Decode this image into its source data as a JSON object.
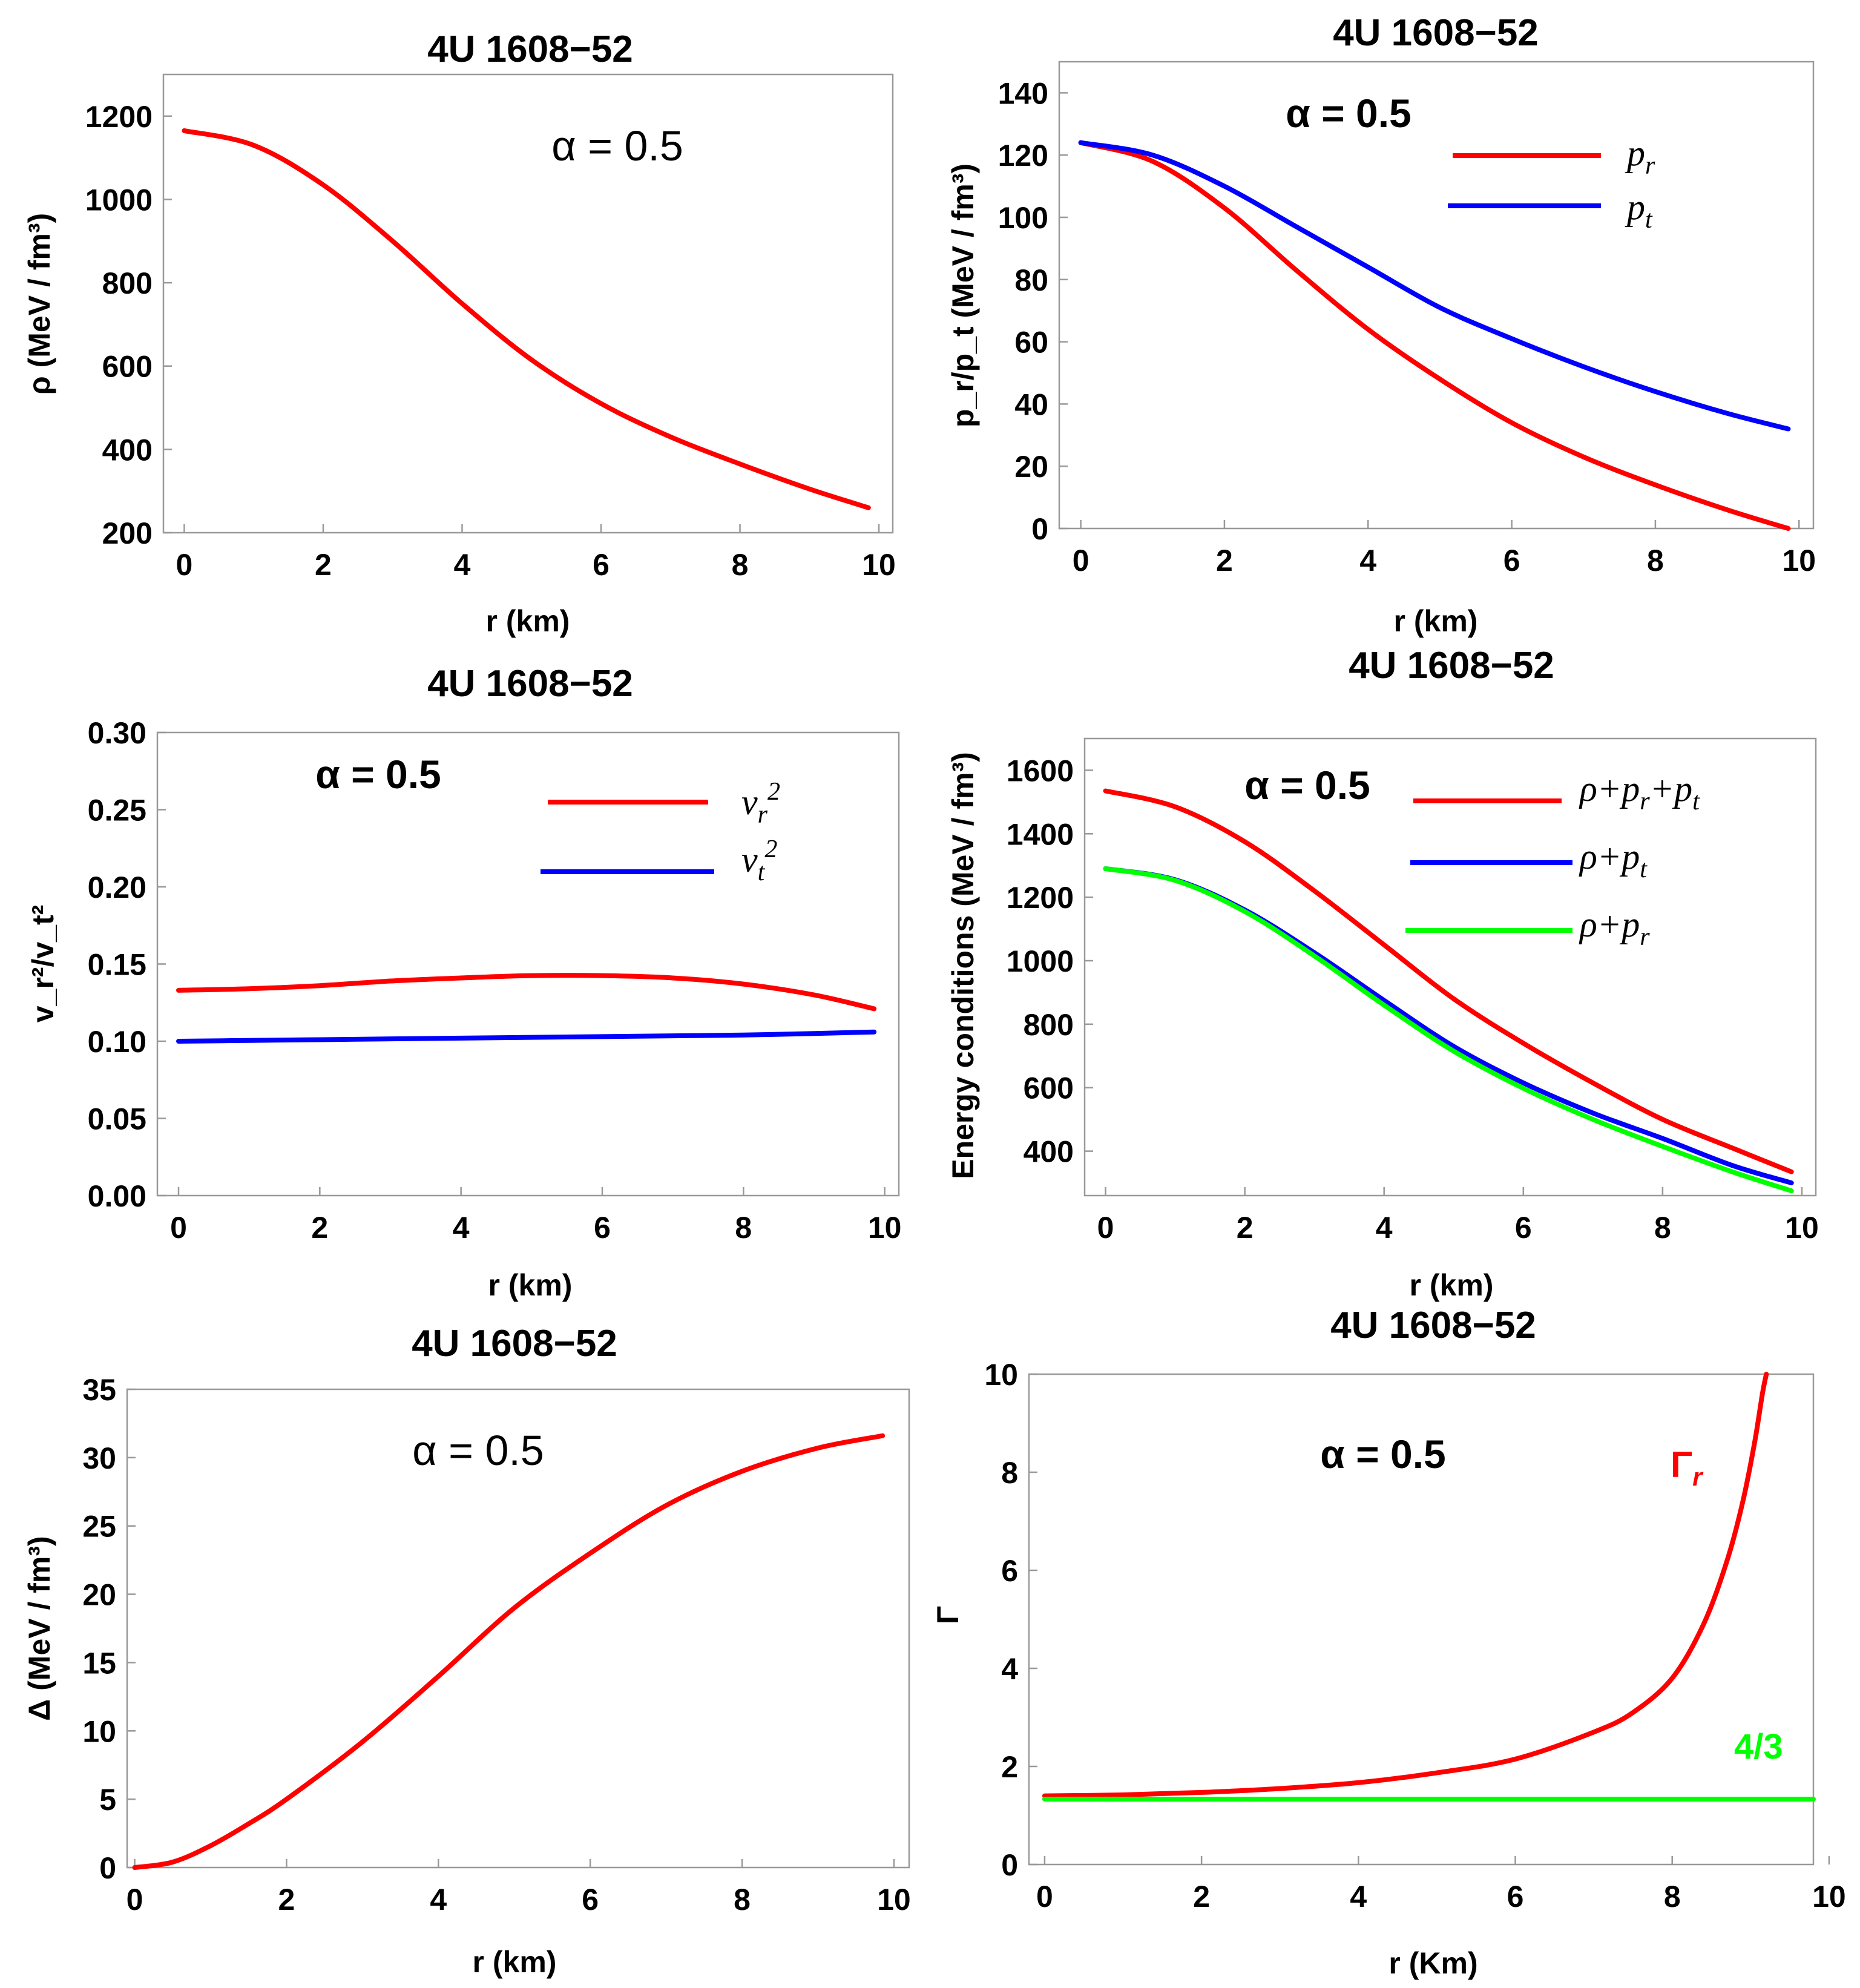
{
  "chart_data": [
    {
      "id": "density",
      "type": "line",
      "title": "4U 1608−52",
      "annotation": "α = 0.5",
      "xlabel": "r (km)",
      "ylabel": "ρ  (MeV / fm³)",
      "xlim": [
        -0.3,
        10.2
      ],
      "ylim": [
        200,
        1300
      ],
      "xticks": [
        0,
        2,
        4,
        6,
        8,
        10
      ],
      "yticks": [
        200,
        400,
        600,
        800,
        1000,
        1200
      ],
      "tick_decimals": 0,
      "x": [
        0,
        1,
        2,
        3,
        4,
        5,
        6,
        7,
        8,
        9,
        9.85
      ],
      "series": [
        {
          "name": "ρ",
          "color": "#ff0000",
          "values": [
            1165,
            1130,
            1035,
            900,
            750,
            615,
            510,
            430,
            365,
            305,
            260
          ]
        }
      ]
    },
    {
      "id": "pressure",
      "type": "line",
      "title": "4U 1608−52",
      "annotation": "α = 0.5",
      "xlabel": "r (km)",
      "ylabel": "p_r/p_t  (MeV / fm³)",
      "xlim": [
        -0.3,
        10.2
      ],
      "ylim": [
        0,
        150
      ],
      "xticks": [
        0,
        2,
        4,
        6,
        8,
        10
      ],
      "yticks": [
        0,
        20,
        40,
        60,
        80,
        100,
        120,
        140
      ],
      "tick_decimals": 0,
      "x": [
        0,
        1,
        2,
        3,
        4,
        5,
        6,
        7,
        8,
        9,
        9.85
      ],
      "series": [
        {
          "name": "p_r",
          "color": "#ff0000",
          "values": [
            124,
            118,
            103,
            83,
            64,
            48,
            34,
            23,
            14,
            6,
            0
          ]
        },
        {
          "name": "p_t",
          "color": "#0000ff",
          "values": [
            124,
            120,
            110,
            97,
            84,
            71,
            61,
            52,
            44,
            37,
            32
          ]
        }
      ],
      "legend": [
        {
          "label": "p",
          "sub": "r",
          "color": "#ff0000"
        },
        {
          "label": "p",
          "sub": "t",
          "color": "#0000ff"
        }
      ]
    },
    {
      "id": "sound-speed",
      "type": "line",
      "title": "4U 1608−52",
      "annotation": "α = 0.5",
      "xlabel": "r (km)",
      "ylabel": "v_r²/v_t²",
      "xlim": [
        -0.3,
        10.2
      ],
      "ylim": [
        0,
        0.3
      ],
      "xticks": [
        0,
        2,
        4,
        6,
        8,
        10
      ],
      "yticks": [
        0.0,
        0.05,
        0.1,
        0.15,
        0.2,
        0.25,
        0.3
      ],
      "tick_decimals": 2,
      "x": [
        0,
        1,
        2,
        3,
        4,
        5,
        6,
        7,
        8,
        9,
        9.85
      ],
      "series": [
        {
          "name": "v_r²",
          "color": "#ff0000",
          "values": [
            0.133,
            0.134,
            0.136,
            0.139,
            0.141,
            0.1425,
            0.1425,
            0.141,
            0.137,
            0.13,
            0.121
          ]
        },
        {
          "name": "v_t²",
          "color": "#0000ff",
          "values": [
            0.1,
            0.1005,
            0.101,
            0.1015,
            0.102,
            0.1025,
            0.103,
            0.1035,
            0.104,
            0.105,
            0.106
          ]
        }
      ],
      "legend": [
        {
          "label": "v",
          "sub": "r",
          "sup": "2",
          "color": "#ff0000"
        },
        {
          "label": "v",
          "sub": "t",
          "sup": "2",
          "color": "#0000ff"
        }
      ]
    },
    {
      "id": "energy-conditions",
      "type": "line",
      "title": "4U 1608−52",
      "annotation": "α = 0.5",
      "xlabel": "r (km)",
      "ylabel": "Energy conditions  (MeV / fm³)",
      "xlim": [
        -0.3,
        10.2
      ],
      "ylim": [
        260,
        1700
      ],
      "xticks": [
        0,
        2,
        4,
        6,
        8,
        10
      ],
      "yticks": [
        400,
        600,
        800,
        1000,
        1200,
        1400,
        1600
      ],
      "tick_decimals": 0,
      "x": [
        0,
        1,
        2,
        3,
        4,
        5,
        6,
        7,
        8,
        9,
        9.85
      ],
      "series": [
        {
          "name": "ρ+p_r+p_t",
          "color": "#ff0000",
          "values": [
            1535,
            1485,
            1375,
            1220,
            1050,
            880,
            740,
            615,
            500,
            410,
            335
          ]
        },
        {
          "name": "ρ+p_t",
          "color": "#0000ff",
          "values": [
            1290,
            1255,
            1160,
            1025,
            875,
            730,
            615,
            520,
            440,
            355,
            300
          ]
        },
        {
          "name": "ρ+p_r",
          "color": "#00ff00",
          "values": [
            1290,
            1253,
            1155,
            1015,
            860,
            715,
            598,
            500,
            415,
            335,
            275
          ]
        }
      ],
      "legend": [
        {
          "label": "ρ+p",
          "sub": "r",
          "tail": "+p",
          "tail_sub": "t",
          "color": "#ff0000"
        },
        {
          "label": "ρ+p",
          "sub": "t",
          "color": "#0000ff"
        },
        {
          "label": "ρ+p",
          "sub": "r",
          "color": "#00ff00"
        }
      ]
    },
    {
      "id": "anisotropy",
      "type": "line",
      "title": "4U 1608−52",
      "annotation": "α = 0.5",
      "xlabel": "r (km)",
      "ylabel": "Δ  (MeV / fm³)",
      "xlim": [
        -0.1,
        10.2
      ],
      "ylim": [
        0,
        35
      ],
      "xticks": [
        0,
        2,
        4,
        6,
        8,
        10
      ],
      "yticks": [
        0,
        5,
        10,
        15,
        20,
        25,
        30,
        35
      ],
      "tick_decimals": 0,
      "x": [
        0,
        0.5,
        1,
        1.5,
        2,
        3,
        4,
        5,
        6,
        7,
        8,
        9,
        9.85
      ],
      "series": [
        {
          "name": "Δ",
          "color": "#ff0000",
          "values": [
            0,
            0.4,
            1.6,
            3.2,
            5.0,
            9.2,
            14,
            19,
            23,
            26.5,
            29,
            30.7,
            31.6
          ]
        }
      ]
    },
    {
      "id": "adiabatic-index",
      "type": "line",
      "title": "4U 1608−52",
      "annotation": "α = 0.5",
      "xlabel": "r (Km)",
      "ylabel": "Γ",
      "xlim": [
        -0.2,
        9.8
      ],
      "ylim": [
        0,
        10
      ],
      "xticks": [
        0,
        2,
        4,
        6,
        8,
        10
      ],
      "yticks": [
        0,
        2,
        4,
        6,
        8,
        10
      ],
      "tick_decimals": 0,
      "x": [
        0,
        1,
        2,
        3,
        4,
        5,
        6,
        7,
        7.5,
        8,
        8.4,
        8.7,
        8.9,
        9.05,
        9.15,
        9.2
      ],
      "series": [
        {
          "name": "Γ_r",
          "color": "#ff0000",
          "values": [
            1.4,
            1.42,
            1.47,
            1.55,
            1.67,
            1.87,
            2.15,
            2.7,
            3.1,
            3.8,
            4.9,
            6.2,
            7.4,
            8.6,
            9.6,
            10.0
          ]
        },
        {
          "name": "4/3",
          "color": "#00ff00",
          "x": [
            0,
            9.8
          ],
          "values": [
            1.3333,
            1.3333
          ]
        }
      ],
      "labels": [
        {
          "text": "Γ",
          "sub": "r",
          "color": "#ff0000"
        },
        {
          "text": "4/3",
          "color": "#00ff00"
        }
      ]
    }
  ]
}
